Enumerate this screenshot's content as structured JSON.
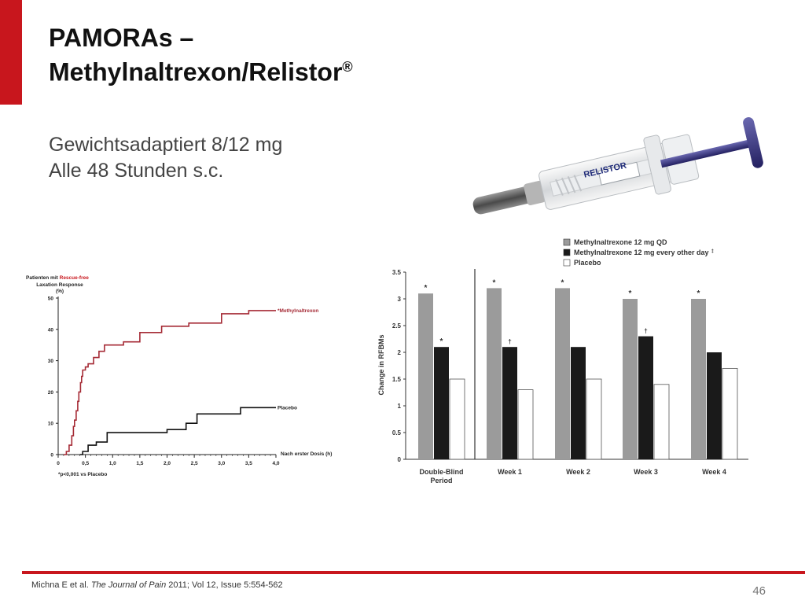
{
  "slide": {
    "title_line1": "PAMORAs –",
    "title_line2": "Methylnaltrexon/Relistor",
    "title_mark": "®",
    "subtitle_lines": [
      "Gewichtsadaptiert 8/12 mg",
      "Alle 48 Stunden s.c."
    ],
    "product_label": "RELISTOR",
    "citation_prefix": "Michna E et al. ",
    "citation_journal": "The Journal of Pain",
    "citation_suffix": " 2011; Vol 12, Issue 5:554-562",
    "page_number": "46",
    "accent_color": "#c8161d"
  },
  "chart_data": [
    {
      "type": "line",
      "ylabel_lines": [
        "Patienten mit Rescue-free",
        "Laxation Response",
        "(%)"
      ],
      "ylabel_highlight": "Rescue-free",
      "xlabel": "Nach erster Dosis (h)",
      "x_ticks": [
        "0",
        "0,5",
        "1,0",
        "1,5",
        "2,0",
        "2,5",
        "3,0",
        "3,5",
        "4,0"
      ],
      "y_ticks": [
        "0",
        "10",
        "20",
        "30",
        "40",
        "50"
      ],
      "xlim": [
        0,
        4.0
      ],
      "ylim": [
        0,
        50
      ],
      "footnote": "*p<0,001 vs Placebo",
      "series": [
        {
          "name": "*Methylnaltrexon",
          "color": "#a52a35",
          "points": [
            [
              0.1,
              0
            ],
            [
              0.15,
              1
            ],
            [
              0.2,
              3
            ],
            [
              0.25,
              6
            ],
            [
              0.28,
              9
            ],
            [
              0.3,
              11
            ],
            [
              0.33,
              14
            ],
            [
              0.36,
              17
            ],
            [
              0.38,
              20
            ],
            [
              0.41,
              23
            ],
            [
              0.43,
              25
            ],
            [
              0.45,
              27
            ],
            [
              0.5,
              28
            ],
            [
              0.55,
              29
            ],
            [
              0.65,
              31
            ],
            [
              0.75,
              33
            ],
            [
              0.85,
              35
            ],
            [
              1.2,
              36
            ],
            [
              1.5,
              39
            ],
            [
              1.9,
              41
            ],
            [
              2.4,
              42
            ],
            [
              3.0,
              45
            ],
            [
              3.5,
              46
            ],
            [
              4.0,
              46
            ]
          ]
        },
        {
          "name": "Placebo",
          "color": "#111111",
          "points": [
            [
              0.4,
              0
            ],
            [
              0.45,
              1
            ],
            [
              0.55,
              3
            ],
            [
              0.7,
              4
            ],
            [
              0.9,
              7
            ],
            [
              2.0,
              8
            ],
            [
              2.35,
              10
            ],
            [
              2.55,
              13
            ],
            [
              3.35,
              15
            ],
            [
              4.0,
              15
            ]
          ]
        }
      ]
    },
    {
      "type": "bar",
      "ylabel": "Change in RFBMs",
      "categories": [
        "Double-Blind Period",
        "Week 1",
        "Week 2",
        "Week 3",
        "Week 4"
      ],
      "y_ticks": [
        "0",
        "0.5",
        "1",
        "1.5",
        "2",
        "2.5",
        "3",
        "3.5"
      ],
      "ylim": [
        0,
        3.5
      ],
      "series": [
        {
          "name": "Methylnaltrexone 12 mg QD",
          "color": "#9b9b9b",
          "values": [
            3.1,
            3.2,
            3.2,
            3.0,
            3.0
          ],
          "markers": [
            "*",
            "*",
            "*",
            "*",
            "*"
          ]
        },
        {
          "name": "Methylnaltrexone 12 mg every other day",
          "name_mark": "‡",
          "color": "#1a1a1a",
          "values": [
            2.1,
            2.1,
            2.1,
            2.3,
            2.0
          ],
          "markers": [
            "*",
            "†",
            "",
            "†",
            ""
          ]
        },
        {
          "name": "Placebo",
          "color": "#ffffff",
          "values": [
            1.5,
            1.3,
            1.5,
            1.4,
            1.7
          ],
          "markers": [
            "",
            "",
            "",
            "",
            ""
          ]
        }
      ]
    }
  ]
}
